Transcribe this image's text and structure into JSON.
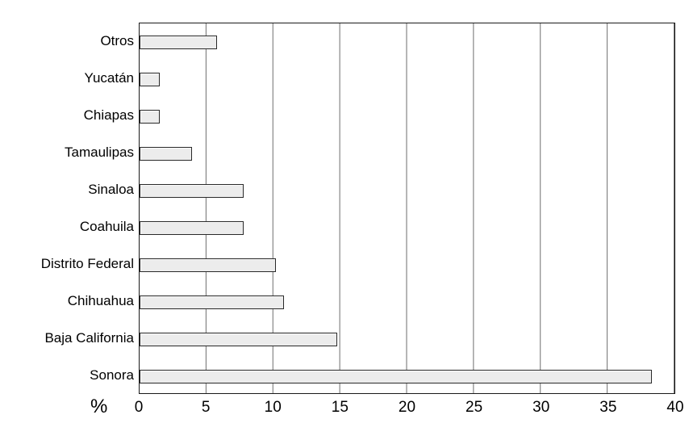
{
  "chart_data": {
    "type": "bar",
    "orientation": "horizontal",
    "title": "",
    "xlabel": "%",
    "ylabel": "",
    "xlim": [
      0,
      40
    ],
    "x_ticks": [
      "0",
      "5",
      "10",
      "15",
      "20",
      "25",
      "30",
      "35",
      "40"
    ],
    "x_tick_values": [
      0,
      5,
      10,
      15,
      20,
      25,
      30,
      35,
      40
    ],
    "grid": "vertical gridlines at every x tick",
    "legend": "none",
    "bar_fill_color": "#ececec",
    "bar_border_color": "#2a2a2a",
    "categories": [
      "Otros",
      "Yucatán",
      "Chiapas",
      "Tamaulipas",
      "Sinaloa",
      "Coahuila",
      "Distrito Federal",
      "Chihuahua",
      "Baja California",
      "Sonora"
    ],
    "values": [
      5.8,
      1.5,
      1.5,
      3.9,
      7.8,
      7.8,
      10.2,
      10.8,
      14.8,
      38.3
    ]
  }
}
